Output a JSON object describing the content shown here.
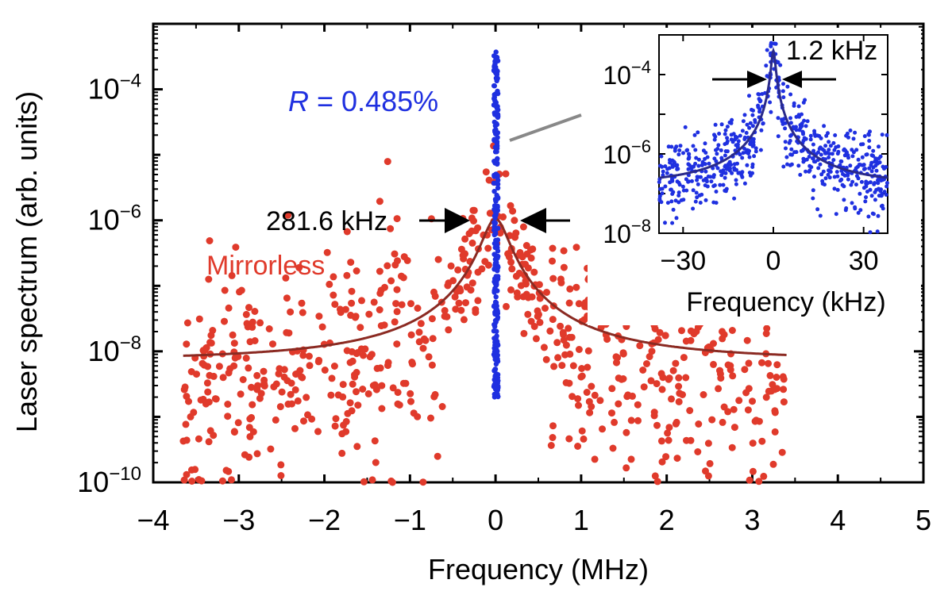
{
  "chart_data": [
    {
      "type": "scatter",
      "xlabel": "Frequency (MHz)",
      "ylabel": "Laser spectrum (arb. units)",
      "xlim": [
        -4,
        5
      ],
      "ylim": [
        1e-10,
        0.001
      ],
      "yscale": "log",
      "x_ticks": [
        -4,
        -3,
        -2,
        -1,
        0,
        1,
        2,
        3,
        4,
        5
      ],
      "x_tick_labels": [
        "−4",
        "−3",
        "−2",
        "−1",
        "0",
        "1",
        "2",
        "3",
        "4",
        "5"
      ],
      "y_ticks": [
        1e-10,
        1e-08,
        1e-06,
        0.0001
      ],
      "y_tick_labels": [
        {
          "base": "10",
          "exp": "−10"
        },
        {
          "base": "10",
          "exp": "−8"
        },
        {
          "base": "10",
          "exp": "−6"
        },
        {
          "base": "10",
          "exp": "−4"
        }
      ],
      "grid": false,
      "series": [
        {
          "name": "Mirrorless",
          "kind": "scatter+lorentzian-fit",
          "color": "#e03a2b",
          "fit_color": "#8b2a22",
          "fit": {
            "center": 0,
            "fwhm": 0.2816,
            "peak": 1.05e-06,
            "background": 7e-09,
            "x_range": [
              -3.65,
              3.4
            ]
          },
          "scatter_x_range": [
            -3.65,
            3.4
          ],
          "scatter_y_range_at_tails": [
            1e-10,
            5e-08
          ]
        },
        {
          "name": "R = 0.485%",
          "kind": "scatter",
          "color": "#1f30e0",
          "x_range": [
            -0.02,
            0.03
          ],
          "y_range": [
            2e-09,
            0.0004
          ]
        }
      ],
      "annotations": {
        "series_label_var": "R",
        "series_label_rest": " = 0.485%",
        "mirrorless_label": "Mirrorless",
        "linewidth_label": "281.6 kHz"
      }
    },
    {
      "type": "scatter",
      "role": "inset",
      "xlabel": "Frequency (kHz)",
      "xlim": [
        -38,
        38
      ],
      "ylim": [
        1e-08,
        0.001
      ],
      "yscale": "log",
      "x_ticks": [
        -30,
        0,
        30
      ],
      "x_tick_labels": [
        "−30",
        "0",
        "30"
      ],
      "y_ticks": [
        1e-08,
        1e-06,
        0.0001
      ],
      "y_tick_labels": [
        {
          "base": "10",
          "exp": "−8"
        },
        {
          "base": "10",
          "exp": "−6"
        },
        {
          "base": "10",
          "exp": "−4"
        }
      ],
      "series": [
        {
          "name": "R = 0.485%",
          "kind": "scatter+lorentzian-fit",
          "color": "#1f30e0",
          "fit_color": "#2a2a8a",
          "fit": {
            "center": 0,
            "fwhm": 1.2,
            "peak": 0.0004,
            "background": 1.5e-07
          }
        }
      ],
      "annotations": {
        "linewidth_label": "1.2 kHz"
      }
    }
  ]
}
